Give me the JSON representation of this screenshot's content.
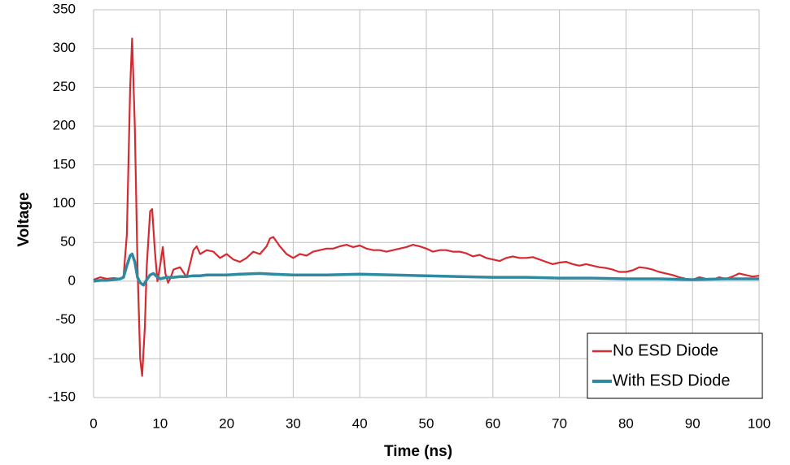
{
  "chart_data": {
    "type": "line",
    "x_label": "Time (ns)",
    "y_label": "Voltage",
    "xlim": [
      0,
      100
    ],
    "ylim": [
      -150,
      350
    ],
    "xticks": [
      0,
      10,
      20,
      30,
      40,
      50,
      60,
      70,
      80,
      90,
      100
    ],
    "yticks": [
      -150,
      -100,
      -50,
      0,
      50,
      100,
      150,
      200,
      250,
      300,
      350
    ],
    "grid": true,
    "legend": "lower right",
    "series": [
      {
        "name": "No ESD Diode",
        "color": "#d62a31",
        "x": [
          0,
          1,
          2,
          3,
          4,
          4.5,
          5,
          5.5,
          5.8,
          6.2,
          6.6,
          7,
          7.3,
          7.7,
          8,
          8.5,
          8.8,
          9.2,
          9.6,
          10,
          10.4,
          10.8,
          11.2,
          11.6,
          12,
          13,
          14,
          15,
          15.5,
          16,
          17,
          18,
          19,
          20,
          21,
          22,
          23,
          24,
          25,
          26,
          26.5,
          27,
          28,
          29,
          30,
          31,
          32,
          33,
          34,
          35,
          36,
          37,
          38,
          39,
          40,
          41,
          42,
          43,
          44,
          45,
          46,
          47,
          48,
          49,
          50,
          51,
          52,
          53,
          54,
          55,
          56,
          57,
          58,
          59,
          60,
          61,
          62,
          63,
          64,
          65,
          66,
          67,
          68,
          69,
          70,
          71,
          72,
          73,
          74,
          75,
          76,
          77,
          78,
          79,
          80,
          81,
          82,
          83,
          84,
          85,
          86,
          87,
          88,
          89,
          90,
          91,
          92,
          93,
          94,
          95,
          96,
          97,
          98,
          99,
          100
        ],
        "values": [
          2,
          5,
          3,
          4,
          3,
          5,
          60,
          250,
          313,
          200,
          20,
          -100,
          -122,
          -60,
          20,
          90,
          93,
          40,
          0,
          20,
          44,
          10,
          -2,
          5,
          15,
          18,
          5,
          40,
          45,
          35,
          40,
          38,
          30,
          35,
          28,
          25,
          30,
          38,
          35,
          45,
          55,
          57,
          45,
          35,
          30,
          35,
          33,
          38,
          40,
          42,
          42,
          45,
          47,
          44,
          46,
          42,
          40,
          40,
          38,
          40,
          42,
          44,
          47,
          45,
          42,
          38,
          40,
          40,
          38,
          38,
          36,
          32,
          34,
          30,
          28,
          26,
          30,
          32,
          30,
          30,
          31,
          28,
          25,
          22,
          24,
          25,
          22,
          20,
          22,
          20,
          18,
          17,
          15,
          12,
          12,
          14,
          18,
          17,
          15,
          12,
          10,
          8,
          5,
          3,
          2,
          5,
          3,
          2,
          5,
          3,
          6,
          10,
          8,
          6,
          7
        ]
      },
      {
        "name": "With ESD Diode",
        "color": "#2e8aa0",
        "x": [
          0,
          1,
          2,
          3,
          4,
          4.5,
          5,
          5.5,
          5.8,
          6.2,
          6.6,
          7,
          7.5,
          8,
          8.5,
          9,
          9.5,
          10,
          11,
          12,
          13,
          14,
          15,
          16,
          17,
          18,
          20,
          22,
          25,
          27,
          30,
          35,
          40,
          45,
          50,
          55,
          60,
          65,
          70,
          75,
          80,
          85,
          90,
          95,
          100
        ],
        "values": [
          0,
          1,
          1,
          2,
          3,
          5,
          20,
          33,
          35,
          25,
          5,
          -2,
          -5,
          2,
          8,
          10,
          6,
          3,
          5,
          5,
          6,
          6,
          7,
          7,
          8,
          8,
          8,
          9,
          10,
          9,
          8,
          8,
          9,
          8,
          7,
          6,
          5,
          5,
          4,
          4,
          3,
          3,
          2,
          3,
          3
        ]
      }
    ]
  }
}
